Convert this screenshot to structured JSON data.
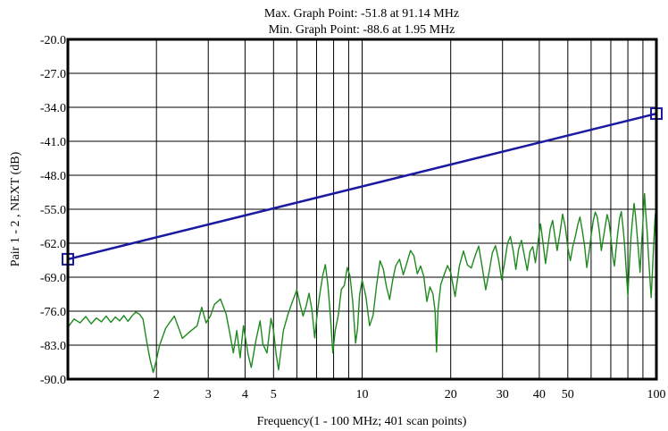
{
  "chart_data": {
    "type": "line",
    "title_lines": [
      "Max. Graph Point: -51.8 at 91.14 MHz",
      "Min. Graph Point: -88.6 at 1.95 MHz"
    ],
    "xlabel": "Frequency(1 - 100 MHz; 401 scan points)",
    "ylabel": "Pair 1 - 2 , NEXT (dB)",
    "x_scale": "log",
    "xlim": [
      1,
      100
    ],
    "ylim": [
      -90,
      -20
    ],
    "grid": true,
    "x_ticks": [
      2,
      3,
      4,
      5,
      10,
      20,
      30,
      40,
      50,
      100
    ],
    "x_tick_labels": [
      "2",
      "3",
      "4",
      "5",
      "10",
      "20",
      "30",
      "40",
      "50",
      "100"
    ],
    "y_ticks": [
      -20,
      -27,
      -34,
      -41,
      -48,
      -55,
      -62,
      -69,
      -76,
      -83,
      -90
    ],
    "y_tick_labels": [
      "-20.0",
      "-27.0",
      "-34.0",
      "-41.0",
      "-48.0",
      "-55.0",
      "-62.0",
      "-69.0",
      "-76.0",
      "-83.0",
      "-90.0"
    ],
    "series": [
      {
        "role": "limit",
        "color": "#1a1aa0",
        "marker": "square",
        "points": [
          [
            1,
            -65.3
          ],
          [
            100,
            -35.3
          ]
        ]
      },
      {
        "role": "measured",
        "color": "#1e8a1e",
        "points": [
          [
            1.0,
            -79.3
          ],
          [
            1.05,
            -77.6
          ],
          [
            1.1,
            -78.4
          ],
          [
            1.15,
            -77.1
          ],
          [
            1.2,
            -78.6
          ],
          [
            1.25,
            -77.4
          ],
          [
            1.3,
            -78.2
          ],
          [
            1.35,
            -77.0
          ],
          [
            1.4,
            -78.3
          ],
          [
            1.45,
            -77.2
          ],
          [
            1.5,
            -78.0
          ],
          [
            1.55,
            -76.9
          ],
          [
            1.6,
            -78.1
          ],
          [
            1.65,
            -77.0
          ],
          [
            1.7,
            -76.2
          ],
          [
            1.75,
            -76.6
          ],
          [
            1.8,
            -77.6
          ],
          [
            1.85,
            -82.0
          ],
          [
            1.9,
            -85.8
          ],
          [
            1.95,
            -88.6
          ],
          [
            2.0,
            -86.0
          ],
          [
            2.05,
            -83.0
          ],
          [
            2.15,
            -79.5
          ],
          [
            2.3,
            -77.0
          ],
          [
            2.45,
            -81.6
          ],
          [
            2.6,
            -80.2
          ],
          [
            2.75,
            -79.0
          ],
          [
            2.85,
            -75.2
          ],
          [
            2.95,
            -78.4
          ],
          [
            3.05,
            -77.0
          ],
          [
            3.15,
            -74.6
          ],
          [
            3.3,
            -73.5
          ],
          [
            3.45,
            -76.6
          ],
          [
            3.55,
            -80.5
          ],
          [
            3.65,
            -84.6
          ],
          [
            3.75,
            -80.0
          ],
          [
            3.85,
            -85.6
          ],
          [
            3.95,
            -79.0
          ],
          [
            4.1,
            -85.0
          ],
          [
            4.2,
            -87.6
          ],
          [
            4.35,
            -82.2
          ],
          [
            4.5,
            -78.0
          ],
          [
            4.6,
            -82.8
          ],
          [
            4.75,
            -84.6
          ],
          [
            4.9,
            -77.5
          ],
          [
            5.0,
            -80.0
          ],
          [
            5.1,
            -84.8
          ],
          [
            5.2,
            -88.1
          ],
          [
            5.4,
            -80.0
          ],
          [
            5.6,
            -76.6
          ],
          [
            5.8,
            -74.0
          ],
          [
            6.0,
            -71.6
          ],
          [
            6.15,
            -74.5
          ],
          [
            6.3,
            -77.0
          ],
          [
            6.45,
            -75.0
          ],
          [
            6.6,
            -72.3
          ],
          [
            6.75,
            -75.7
          ],
          [
            6.9,
            -81.5
          ],
          [
            7.05,
            -76.0
          ],
          [
            7.2,
            -72.0
          ],
          [
            7.35,
            -68.6
          ],
          [
            7.5,
            -66.4
          ],
          [
            7.65,
            -70.6
          ],
          [
            7.8,
            -77.0
          ],
          [
            7.95,
            -84.6
          ],
          [
            8.1,
            -80.0
          ],
          [
            8.3,
            -76.8
          ],
          [
            8.5,
            -71.5
          ],
          [
            8.7,
            -70.7
          ],
          [
            8.9,
            -67.0
          ],
          [
            9.1,
            -68.8
          ],
          [
            9.3,
            -74.4
          ],
          [
            9.5,
            -82.6
          ],
          [
            9.65,
            -79.5
          ],
          [
            9.8,
            -72.7
          ],
          [
            10.0,
            -69.6
          ],
          [
            10.3,
            -73.0
          ],
          [
            10.6,
            -79.0
          ],
          [
            10.9,
            -76.8
          ],
          [
            11.2,
            -70.6
          ],
          [
            11.5,
            -65.6
          ],
          [
            11.8,
            -67.3
          ],
          [
            12.1,
            -71.0
          ],
          [
            12.4,
            -73.6
          ],
          [
            12.7,
            -69.6
          ],
          [
            13.0,
            -66.7
          ],
          [
            13.4,
            -65.3
          ],
          [
            13.8,
            -68.5
          ],
          [
            14.2,
            -66.0
          ],
          [
            14.6,
            -63.5
          ],
          [
            15.0,
            -64.6
          ],
          [
            15.4,
            -68.3
          ],
          [
            15.8,
            -66.7
          ],
          [
            16.2,
            -68.8
          ],
          [
            16.6,
            -74.0
          ],
          [
            17.0,
            -71.0
          ],
          [
            17.4,
            -72.4
          ],
          [
            17.7,
            -76.0
          ],
          [
            17.9,
            -84.4
          ],
          [
            18.1,
            -75.8
          ],
          [
            18.5,
            -70.5
          ],
          [
            19.0,
            -68.5
          ],
          [
            19.5,
            -66.6
          ],
          [
            20.0,
            -68.0
          ],
          [
            20.7,
            -73.0
          ],
          [
            21.4,
            -66.7
          ],
          [
            22.1,
            -63.6
          ],
          [
            22.8,
            -66.5
          ],
          [
            23.5,
            -67.1
          ],
          [
            24.2,
            -64.6
          ],
          [
            24.9,
            -62.6
          ],
          [
            25.6,
            -67.0
          ],
          [
            26.3,
            -71.6
          ],
          [
            27.0,
            -68.0
          ],
          [
            27.7,
            -64.0
          ],
          [
            28.4,
            -62.5
          ],
          [
            29.1,
            -65.5
          ],
          [
            29.8,
            -69.5
          ],
          [
            30.5,
            -66.0
          ],
          [
            31.2,
            -62.0
          ],
          [
            31.9,
            -60.6
          ],
          [
            32.6,
            -63.5
          ],
          [
            33.3,
            -67.4
          ],
          [
            34.0,
            -63.3
          ],
          [
            34.8,
            -61.4
          ],
          [
            35.6,
            -64.6
          ],
          [
            36.4,
            -67.6
          ],
          [
            37.2,
            -63.7
          ],
          [
            38.0,
            -62.7
          ],
          [
            38.8,
            -66.0
          ],
          [
            39.6,
            -61.8
          ],
          [
            40.4,
            -58.0
          ],
          [
            41.2,
            -62.0
          ],
          [
            42.0,
            -66.2
          ],
          [
            42.8,
            -62.5
          ],
          [
            43.6,
            -59.0
          ],
          [
            44.4,
            -57.3
          ],
          [
            45.2,
            -60.6
          ],
          [
            46.0,
            -63.5
          ],
          [
            47.0,
            -60.0
          ],
          [
            48.0,
            -56.0
          ],
          [
            49.0,
            -58.6
          ],
          [
            50.0,
            -62.8
          ],
          [
            51.0,
            -65.6
          ],
          [
            52.0,
            -62.7
          ],
          [
            53.0,
            -60.7
          ],
          [
            54.0,
            -58.3
          ],
          [
            55.0,
            -56.6
          ],
          [
            56.0,
            -59.4
          ],
          [
            57.0,
            -62.5
          ],
          [
            58.0,
            -67.0
          ],
          [
            59.0,
            -64.0
          ],
          [
            60.0,
            -60.5
          ],
          [
            61.0,
            -57.4
          ],
          [
            62.0,
            -55.6
          ],
          [
            63.0,
            -56.7
          ],
          [
            64.0,
            -59.6
          ],
          [
            65.0,
            -63.5
          ],
          [
            66.0,
            -61.0
          ],
          [
            67.0,
            -58.5
          ],
          [
            68.0,
            -56.1
          ],
          [
            69.0,
            -57.6
          ],
          [
            70.0,
            -60.6
          ],
          [
            71.0,
            -64.6
          ],
          [
            72.0,
            -66.7
          ],
          [
            73.0,
            -63.0
          ],
          [
            74.0,
            -59.6
          ],
          [
            75.0,
            -56.8
          ],
          [
            76.0,
            -55.5
          ],
          [
            77.0,
            -58.6
          ],
          [
            78.0,
            -62.5
          ],
          [
            79.0,
            -67.8
          ],
          [
            80.0,
            -72.8
          ],
          [
            81.0,
            -66.0
          ],
          [
            82.0,
            -60.6
          ],
          [
            83.0,
            -57.0
          ],
          [
            84.0,
            -53.8
          ],
          [
            85.0,
            -56.5
          ],
          [
            86.0,
            -60.2
          ],
          [
            87.0,
            -64.0
          ],
          [
            88.0,
            -68.0
          ],
          [
            89.0,
            -62.6
          ],
          [
            90.0,
            -57.6
          ],
          [
            91.14,
            -51.8
          ],
          [
            92.0,
            -55.6
          ],
          [
            93.0,
            -59.6
          ],
          [
            94.0,
            -64.6
          ],
          [
            95.0,
            -69.0
          ],
          [
            96.0,
            -73.2
          ],
          [
            97.0,
            -67.6
          ],
          [
            98.0,
            -61.6
          ],
          [
            99.0,
            -56.6
          ],
          [
            100.0,
            -54.2
          ]
        ]
      }
    ]
  }
}
